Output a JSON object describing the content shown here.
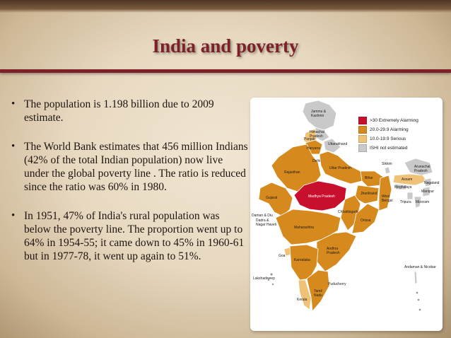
{
  "slide": {
    "title": "India and poverty",
    "bullets": [
      "The population is 1.198 billion due to 2009 estimate.",
      "The World Bank estimates that 456 million Indians (42% of the total Indian population) now live under the global poverty line . The ratio is reduced since the ratio was 60%  in 1980.",
      "In 1951, 47% of India's rural population was below the poverty line. The proportion went up to 64% in 1954-55; it came down to 45% in 1960-61 but in 1977-78, it went up again to 51%."
    ]
  },
  "map": {
    "legend": [
      {
        "label": ">30 Extremely Alarming",
        "color": "#c8102e"
      },
      {
        "label": "20.0-29.9 Alarming",
        "color": "#d68a1e"
      },
      {
        "label": "10.0-19.9 Serious",
        "color": "#efc277"
      },
      {
        "label": "ISHI not estimated",
        "color": "#c9c9c9"
      }
    ],
    "state_labels": {
      "jammu_kashmir": "Jammu & Kashmir",
      "himachal": "Himachal Pradesh",
      "punjab": "Punjab",
      "uttarakhand": "Uttarakhand",
      "haryana": "Haryana",
      "delhi": "Delhi",
      "rajasthan": "Rajasthan",
      "uttar_pradesh": "Uttar Pradesh",
      "sikkim": "Sikkim",
      "assam": "Assam",
      "arunachal": "Arunachal Pradesh",
      "nagaland": "Nagaland",
      "meghalaya": "Meghalaya",
      "manipur": "Manipur",
      "tripura": "Tripura",
      "mizoram": "Mizoram",
      "bihar": "Bihar",
      "jharkhand": "Jharkhand",
      "west_bengal": "West Bengal",
      "gujarat": "Gujarat",
      "madhya_pradesh": "Madhya Pradesh",
      "chhattisgarh": "Chhattisgarh",
      "orissa": "Orissa",
      "daman_diu": "Daman & Diu",
      "dadra": "Dadra & Nagar Haveli",
      "maharashtra": "Maharashtra",
      "andhra": "Andhra Pradesh",
      "goa": "Goa",
      "karnataka": "Karnataka",
      "lakshadweep": "Lakshadweep",
      "kerala": "Kerala",
      "tamil_nadu": "Tamil Nadu",
      "puducherry": "Puducherry",
      "andaman": "Andaman & Nicobar"
    }
  }
}
